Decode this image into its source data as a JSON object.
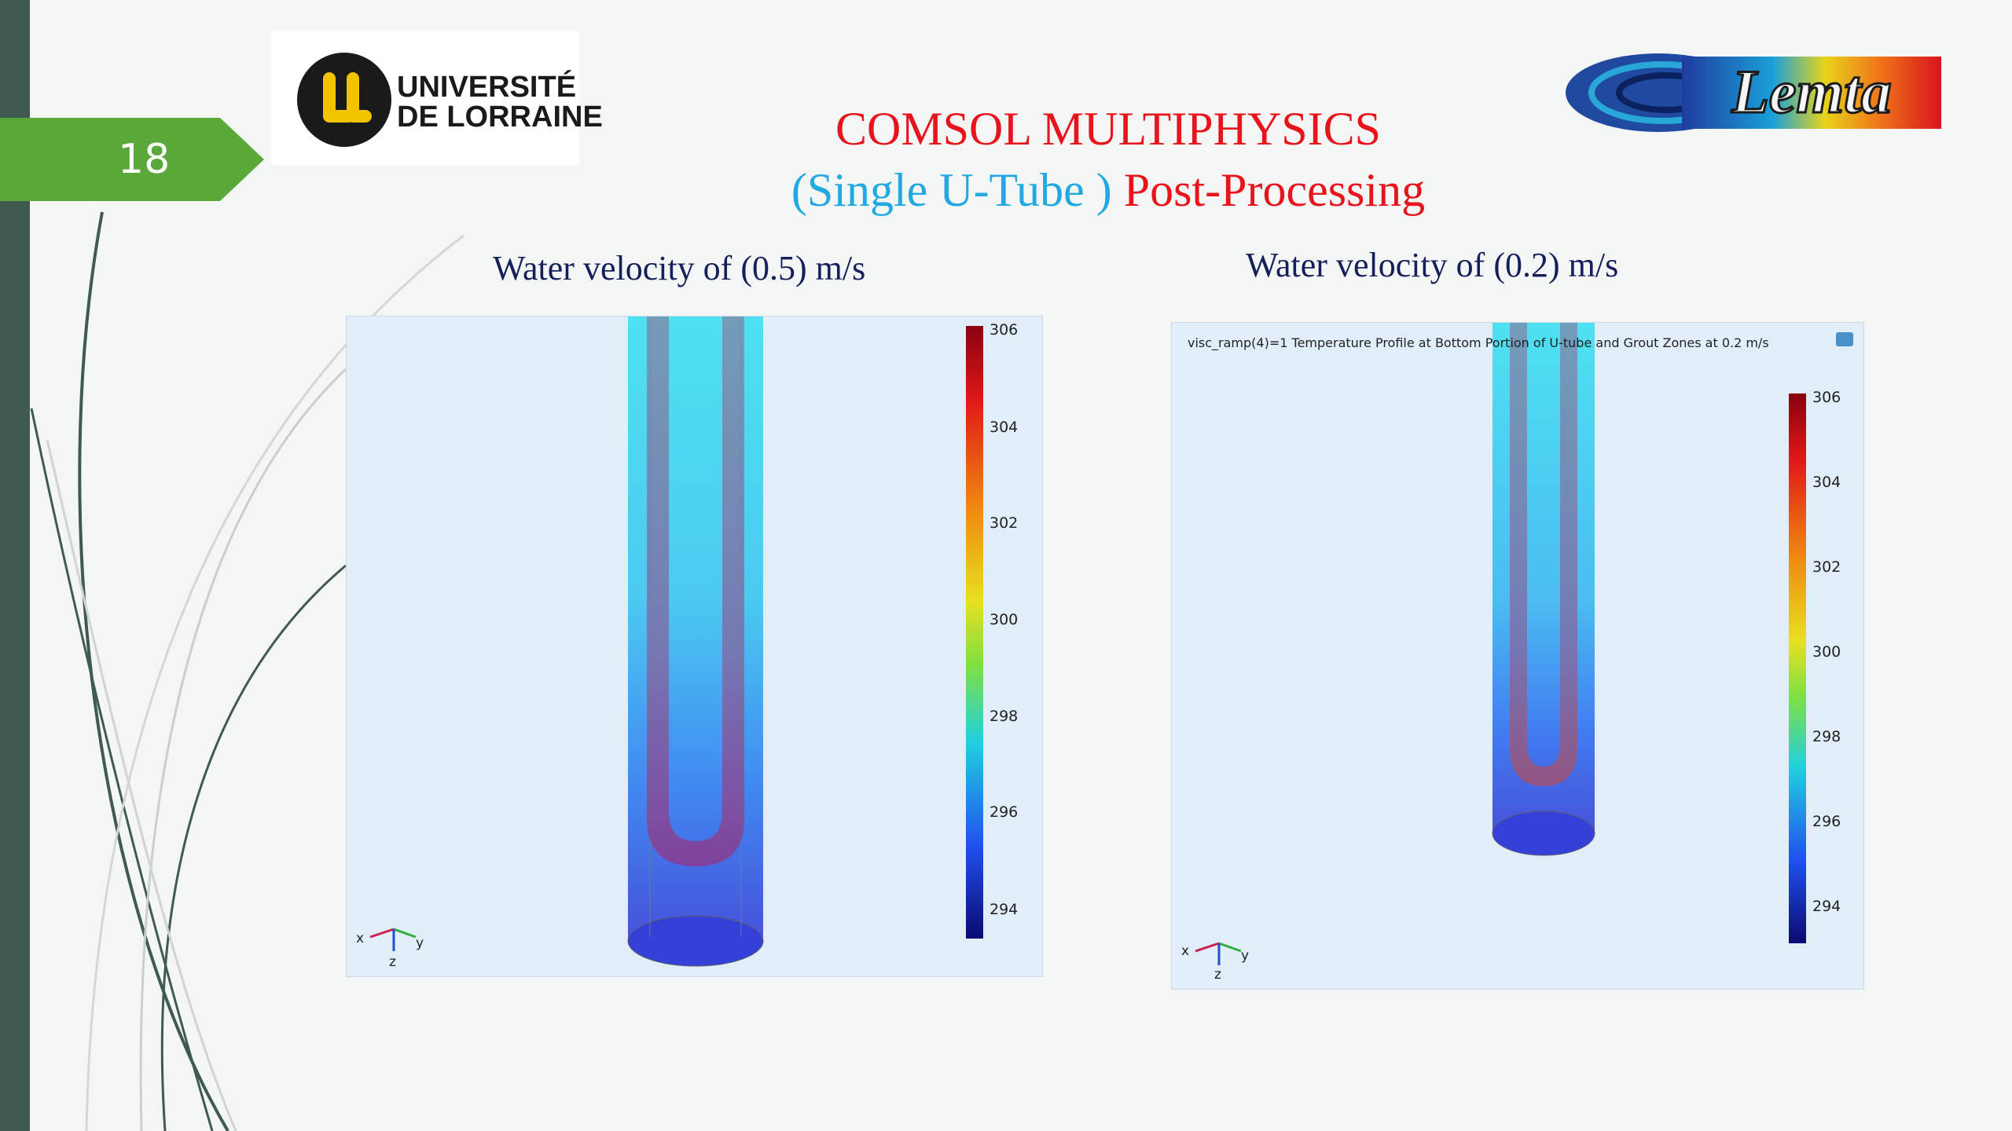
{
  "slide": {
    "number": "18",
    "logos": {
      "left_line1": "UNIVERSITÉ",
      "left_line2": "DE LORRAINE",
      "right": "Lemta"
    },
    "title_line1": "COMSOL MULTIPHYSICS",
    "title_line2_part1": "(Single U-Tube )",
    "title_line2_part2": "Post-Processing",
    "accent_green": "#5aa83a",
    "bar_color": "#3f5b4f",
    "title_red": "#e8141c",
    "title_cyan": "#22a9e0"
  },
  "panels": [
    {
      "caption": "Water velocity of (0.5) m/s",
      "plot_title": "",
      "colorbar_ticks": [
        "306",
        "304",
        "302",
        "300",
        "298",
        "296",
        "294"
      ],
      "axes": {
        "x": "x",
        "y": "y",
        "z": "z"
      }
    },
    {
      "caption": "Water velocity of (0.2) m/s",
      "plot_title": "visc_ramp(4)=1  Temperature Profile at Bottom Portion of U-tube and Grout Zones at 0.2 m/s",
      "colorbar_ticks": [
        "306",
        "304",
        "302",
        "300",
        "298",
        "296",
        "294"
      ],
      "axes": {
        "x": "x",
        "y": "y",
        "z": "z"
      }
    }
  ]
}
